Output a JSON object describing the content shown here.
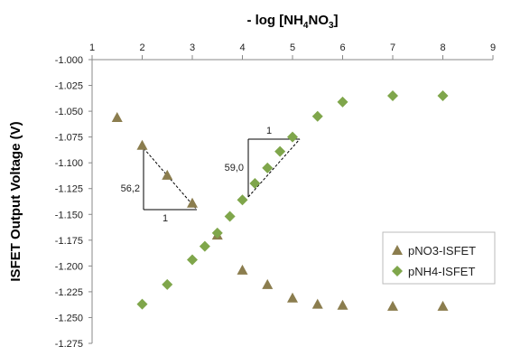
{
  "chart_data": {
    "type": "scatter",
    "xlabel_parts": [
      "- log [NH",
      "4",
      "NO",
      "3",
      "]"
    ],
    "ylabel": "ISFET Output Voltage (V)",
    "xlim": [
      1,
      9
    ],
    "ylim": [
      -1.275,
      -1.0
    ],
    "x_ticks": [
      "1",
      "2",
      "3",
      "4",
      "5",
      "6",
      "7",
      "8",
      "9"
    ],
    "y_ticks": [
      "-1.000",
      "-1.025",
      "-1.050",
      "-1.075",
      "-1.100",
      "-1.125",
      "-1.150",
      "-1.175",
      "-1.200",
      "-1.225",
      "-1.250",
      "-1.275"
    ],
    "x_axis_position": "top",
    "grid": false,
    "legend_position": "bottom-right",
    "series": [
      {
        "name": "pNO3-ISFET",
        "marker": "triangle",
        "color": "#8B7D4E",
        "x": [
          1.5,
          2,
          2.5,
          3,
          3.5,
          4,
          4.5,
          5,
          5.5,
          6,
          7,
          8
        ],
        "y": [
          -1.056,
          -1.083,
          -1.112,
          -1.139,
          -1.17,
          -1.204,
          -1.218,
          -1.231,
          -1.237,
          -1.238,
          -1.239,
          -1.239
        ]
      },
      {
        "name": "pNH4-ISFET",
        "marker": "diamond",
        "color": "#7FA64B",
        "x": [
          2,
          2.5,
          3,
          3.25,
          3.5,
          3.75,
          4,
          4.25,
          4.5,
          4.75,
          5,
          5.5,
          6,
          7,
          8
        ],
        "y": [
          -1.237,
          -1.218,
          -1.194,
          -1.181,
          -1.168,
          -1.152,
          -1.136,
          -1.12,
          -1.105,
          -1.089,
          -1.075,
          -1.055,
          -1.041,
          -1.035,
          -1.035
        ]
      }
    ],
    "annotations": {
      "no3_slope_value": "56,2",
      "no3_run_label": "1",
      "nh4_slope_value": "59,0",
      "nh4_run_label": "1"
    }
  }
}
